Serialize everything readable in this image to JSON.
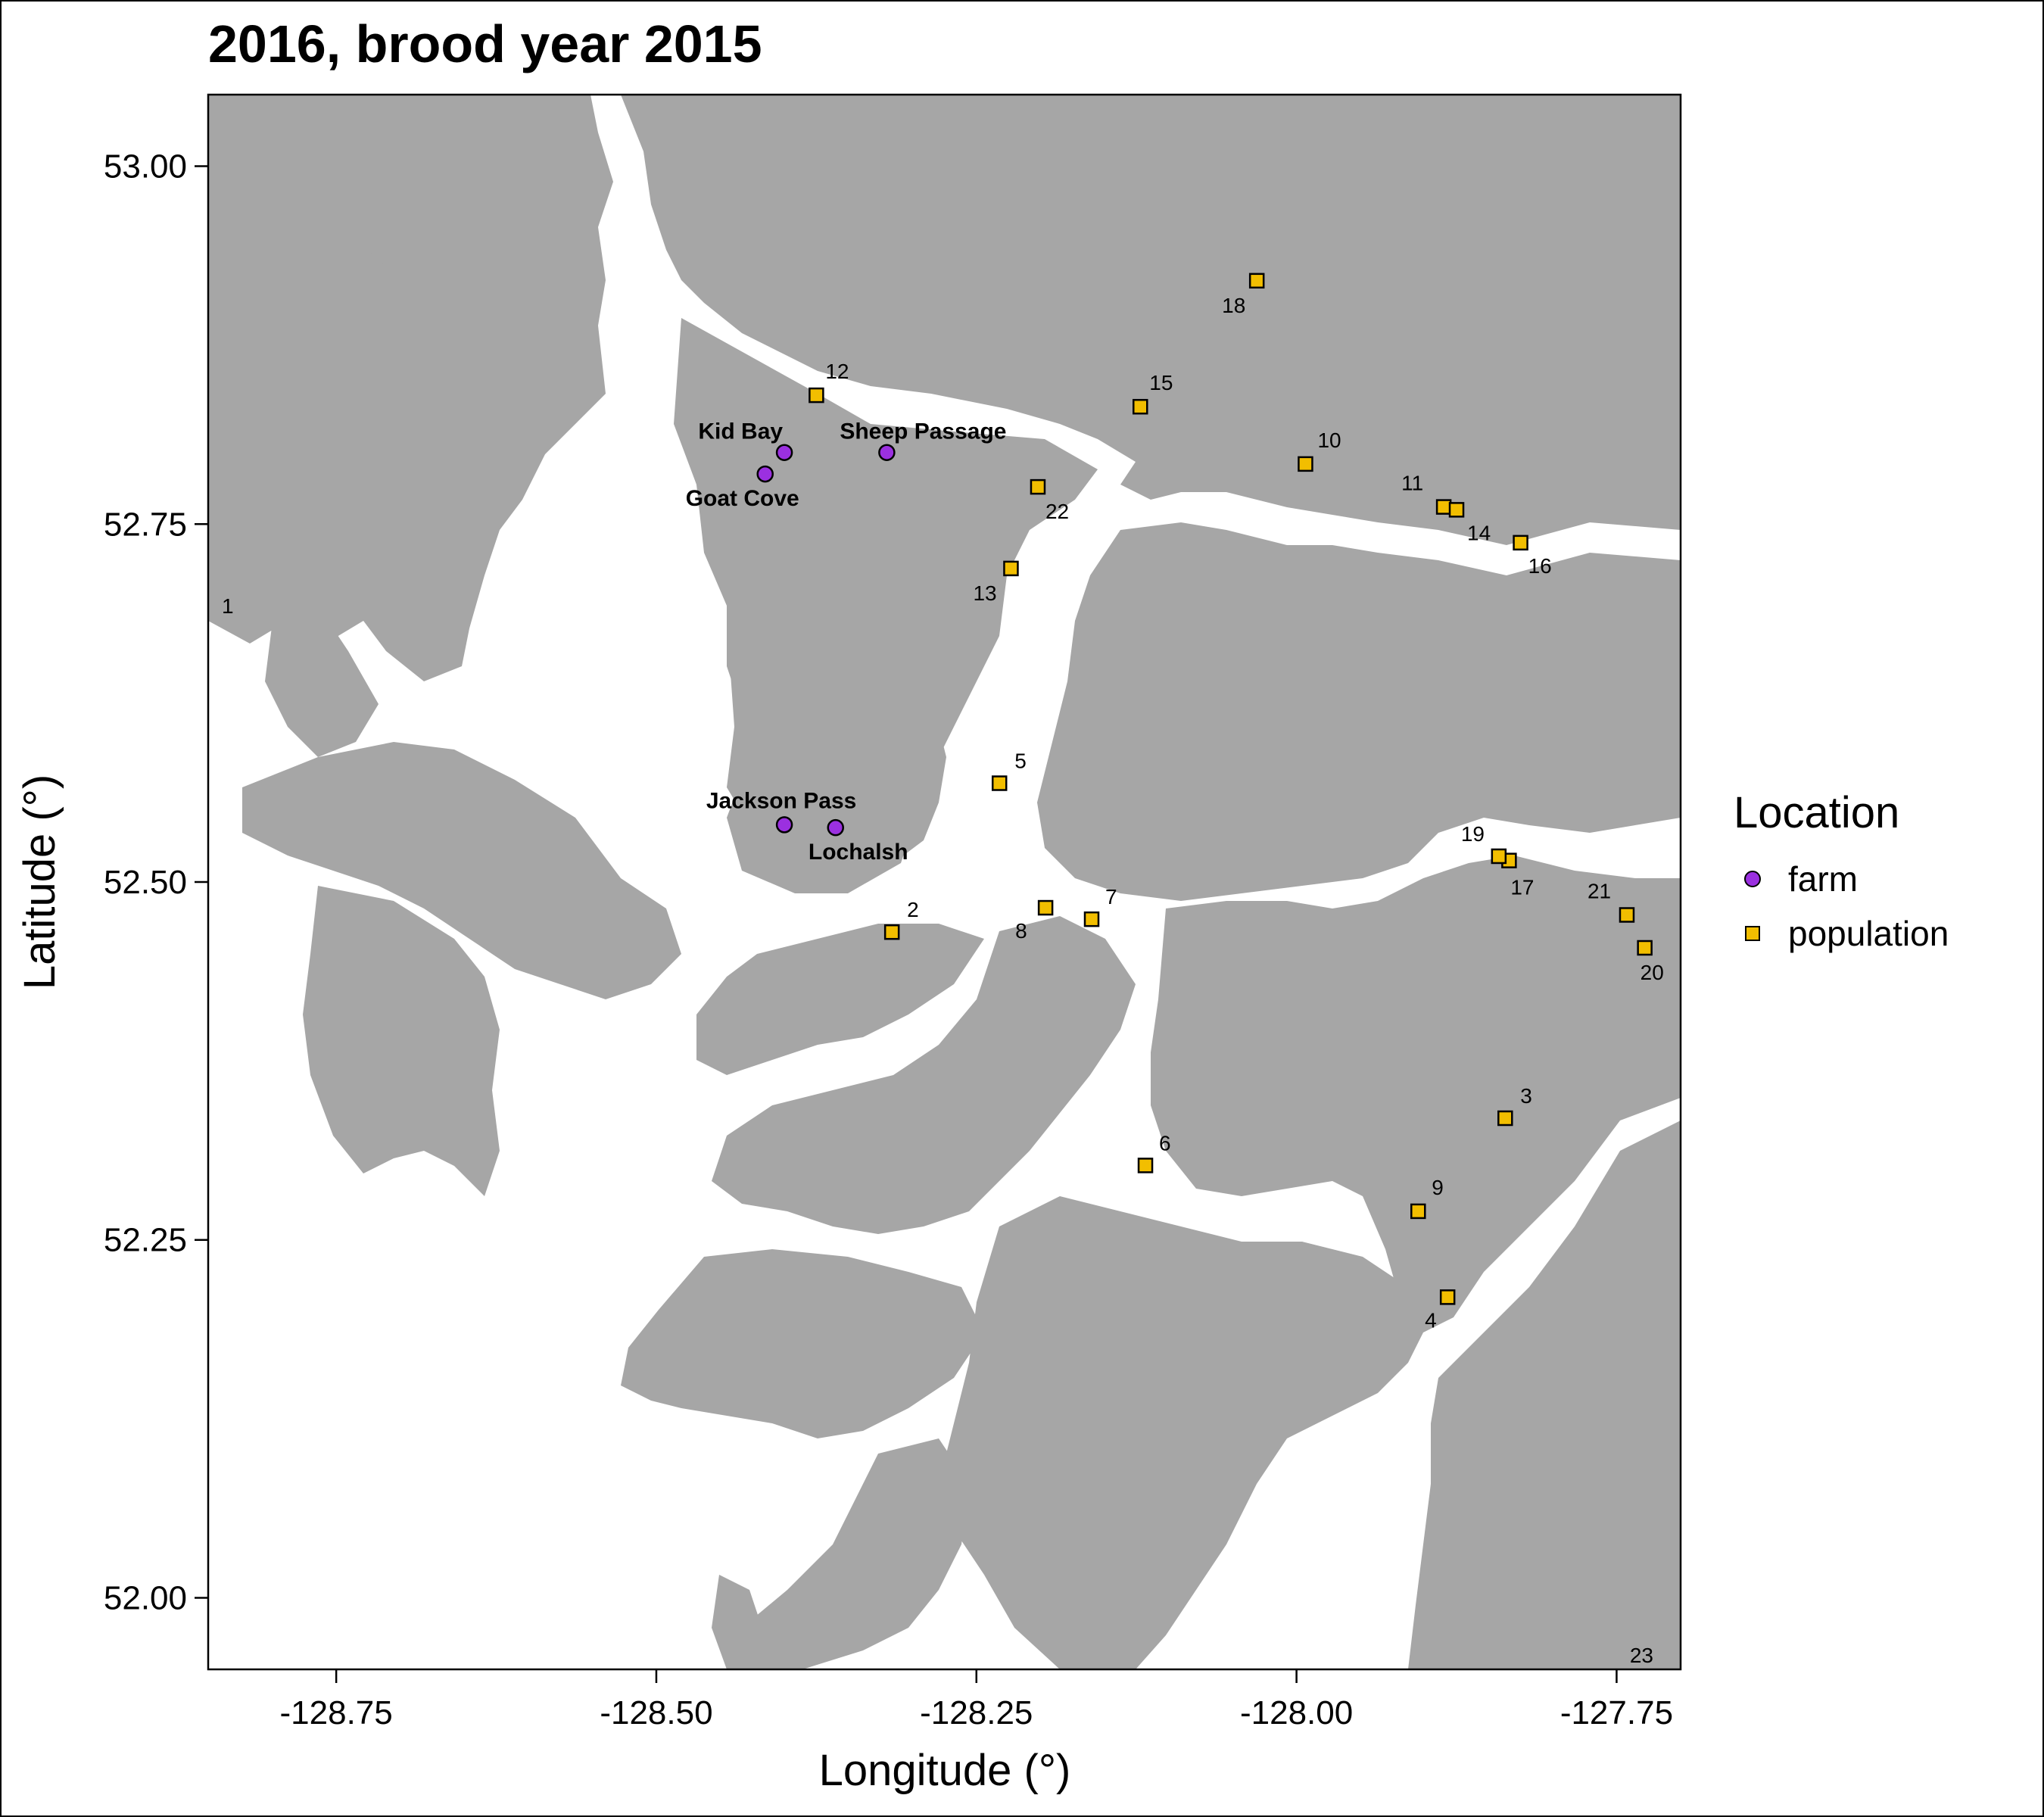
{
  "title": "2016, brood year 2015",
  "map": {
    "x_label": "Longitude (°)",
    "y_label": "Latitude (°)",
    "lon_range": [
      -128.85,
      -127.7
    ],
    "lat_range": [
      51.95,
      53.05
    ],
    "x_ticks": [
      {
        "value": -128.75,
        "label": "-128.75"
      },
      {
        "value": -128.5,
        "label": "-128.50"
      },
      {
        "value": -128.25,
        "label": "-128.25"
      },
      {
        "value": -128.0,
        "label": "-128.00"
      },
      {
        "value": -127.75,
        "label": "-127.75"
      }
    ],
    "y_ticks": [
      {
        "value": 53.0,
        "label": "53.00"
      },
      {
        "value": 52.75,
        "label": "52.75"
      },
      {
        "value": 52.5,
        "label": "52.50"
      },
      {
        "value": 52.25,
        "label": "52.25"
      },
      {
        "value": 52.0,
        "label": "52.00"
      }
    ],
    "land_color": "#a6a6a6",
    "water_color": "#ffffff"
  },
  "legend": {
    "title": "Location",
    "items": [
      {
        "label": "farm",
        "color": "#9b30e0",
        "shape": "circle"
      },
      {
        "label": "population",
        "color": "#f2be00",
        "shape": "square"
      }
    ]
  },
  "farms": [
    {
      "name": "Kid Bay",
      "lon": -128.4,
      "lat": 52.8
    },
    {
      "name": "Goat Cove",
      "lon": -128.415,
      "lat": 52.785
    },
    {
      "name": "Sheep Passage",
      "lon": -128.32,
      "lat": 52.8
    },
    {
      "name": "Jackson Pass",
      "lon": -128.4,
      "lat": 52.54
    },
    {
      "name": "Lochalsh",
      "lon": -128.36,
      "lat": 52.538
    }
  ],
  "populations": [
    {
      "id": "1",
      "lon": -128.85,
      "lat": 52.692
    },
    {
      "id": "2",
      "lon": -128.316,
      "lat": 52.465
    },
    {
      "id": "3",
      "lon": -127.837,
      "lat": 52.335
    },
    {
      "id": "4",
      "lon": -127.882,
      "lat": 52.21
    },
    {
      "id": "5",
      "lon": -128.232,
      "lat": 52.569
    },
    {
      "id": "6",
      "lon": -128.118,
      "lat": 52.302
    },
    {
      "id": "7",
      "lon": -128.16,
      "lat": 52.474
    },
    {
      "id": "8",
      "lon": -128.196,
      "lat": 52.482
    },
    {
      "id": "9",
      "lon": -127.905,
      "lat": 52.27
    },
    {
      "id": "10",
      "lon": -127.993,
      "lat": 52.792
    },
    {
      "id": "11",
      "lon": -127.885,
      "lat": 52.762
    },
    {
      "id": "12",
      "lon": -128.375,
      "lat": 52.84
    },
    {
      "id": "13",
      "lon": -128.223,
      "lat": 52.719
    },
    {
      "id": "14",
      "lon": -127.875,
      "lat": 52.76
    },
    {
      "id": "15",
      "lon": -128.122,
      "lat": 52.832
    },
    {
      "id": "16",
      "lon": -127.825,
      "lat": 52.737
    },
    {
      "id": "17",
      "lon": -127.834,
      "lat": 52.515
    },
    {
      "id": "18",
      "lon": -128.031,
      "lat": 52.92
    },
    {
      "id": "19",
      "lon": -127.842,
      "lat": 52.518
    },
    {
      "id": "20",
      "lon": -127.728,
      "lat": 52.454
    },
    {
      "id": "21",
      "lon": -127.742,
      "lat": 52.477
    },
    {
      "id": "22",
      "lon": -128.202,
      "lat": 52.776
    },
    {
      "id": "23",
      "lon": -127.7,
      "lat": 51.96
    }
  ]
}
